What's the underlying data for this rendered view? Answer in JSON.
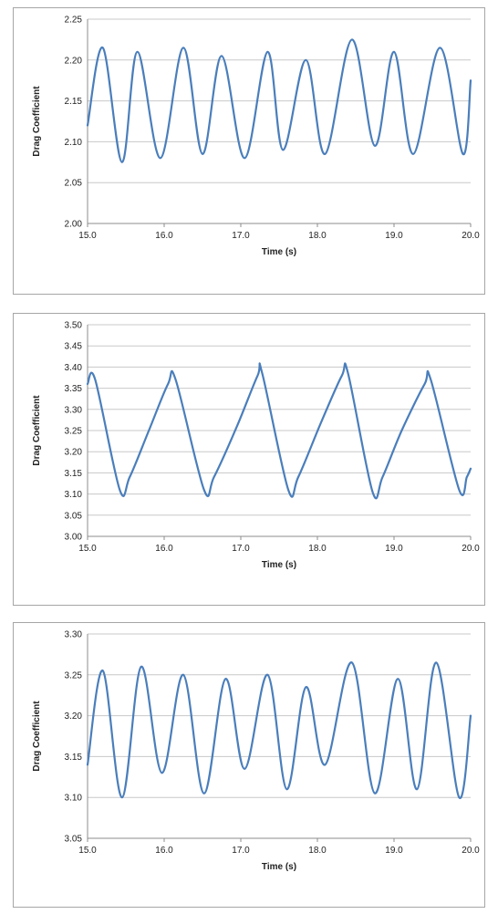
{
  "chart_data": [
    {
      "type": "line",
      "title": "",
      "xlabel": "Time (s)",
      "ylabel": "Drag Coefficient",
      "xlim": [
        15.0,
        20.0
      ],
      "ylim": [
        2.0,
        2.25
      ],
      "x_ticks": [
        "15.0",
        "16.0",
        "17.0",
        "18.0",
        "19.0",
        "20.0"
      ],
      "y_ticks": [
        "2.00",
        "2.05",
        "2.10",
        "2.15",
        "2.20",
        "2.25"
      ],
      "grid": true,
      "line_color": "#4a7ebb",
      "series": [
        {
          "x": [
            15.0,
            15.2,
            15.45,
            15.65,
            15.95,
            16.25,
            16.5,
            16.75,
            17.05,
            17.35,
            17.55,
            17.85,
            18.1,
            18.45,
            18.75,
            19.0,
            19.25,
            19.6,
            19.9,
            20.0
          ],
          "y": [
            2.12,
            2.215,
            2.075,
            2.21,
            2.08,
            2.215,
            2.085,
            2.205,
            2.08,
            2.21,
            2.09,
            2.2,
            2.085,
            2.225,
            2.095,
            2.21,
            2.085,
            2.215,
            2.085,
            2.175
          ]
        }
      ]
    },
    {
      "type": "line",
      "title": "",
      "xlabel": "Time (s)",
      "ylabel": "Drag Coefficient",
      "xlim": [
        15.0,
        20.0
      ],
      "ylim": [
        3.0,
        3.5
      ],
      "x_ticks": [
        "15.0",
        "16.0",
        "17.0",
        "18.0",
        "19.0",
        "20.0"
      ],
      "y_ticks": [
        "3.00",
        "3.05",
        "3.10",
        "3.15",
        "3.20",
        "3.25",
        "3.30",
        "3.35",
        "3.40",
        "3.45",
        "3.50"
      ],
      "grid": true,
      "line_color": "#4a7ebb",
      "series": [
        {
          "x": [
            15.0,
            15.1,
            15.42,
            15.55,
            15.8,
            16.05,
            16.15,
            16.52,
            16.65,
            16.95,
            17.22,
            17.28,
            17.62,
            17.75,
            18.05,
            18.32,
            18.4,
            18.72,
            18.85,
            19.1,
            19.4,
            19.48,
            19.85,
            19.95,
            20.0
          ],
          "y": [
            3.36,
            3.37,
            3.11,
            3.14,
            3.25,
            3.36,
            3.37,
            3.11,
            3.14,
            3.26,
            3.38,
            3.385,
            3.11,
            3.14,
            3.27,
            3.38,
            3.385,
            3.105,
            3.14,
            3.25,
            3.36,
            3.37,
            3.11,
            3.14,
            3.16
          ]
        }
      ]
    },
    {
      "type": "line",
      "title": "",
      "xlabel": "Time (s)",
      "ylabel": "Drag Coefficient",
      "xlim": [
        15.0,
        20.0
      ],
      "ylim": [
        3.05,
        3.3
      ],
      "x_ticks": [
        "15.0",
        "16.0",
        "17.0",
        "18.0",
        "19.0",
        "20.0"
      ],
      "y_ticks": [
        "3.05",
        "3.10",
        "3.15",
        "3.20",
        "3.25",
        "3.30"
      ],
      "grid": true,
      "line_color": "#4a7ebb",
      "series": [
        {
          "x": [
            15.0,
            15.2,
            15.45,
            15.7,
            15.97,
            16.25,
            16.52,
            16.8,
            17.05,
            17.35,
            17.6,
            17.85,
            18.1,
            18.45,
            18.75,
            19.05,
            19.3,
            19.55,
            19.85,
            20.0
          ],
          "y": [
            3.14,
            3.255,
            3.1,
            3.26,
            3.13,
            3.25,
            3.105,
            3.245,
            3.135,
            3.25,
            3.11,
            3.235,
            3.14,
            3.265,
            3.105,
            3.245,
            3.11,
            3.265,
            3.1,
            3.2
          ]
        }
      ]
    }
  ]
}
